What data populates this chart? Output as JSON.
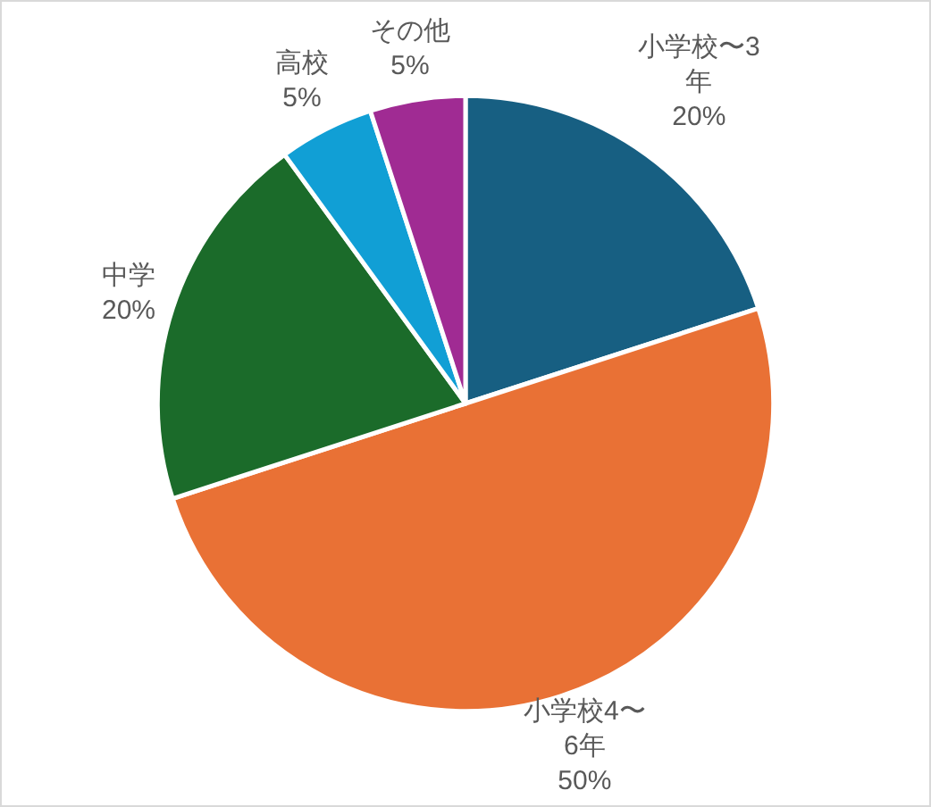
{
  "chart_data": {
    "type": "pie",
    "categories": [
      "小学校〜3年",
      "小学校4〜6年",
      "中学",
      "高校",
      "その他"
    ],
    "values": [
      20,
      50,
      20,
      5,
      5
    ],
    "colors": [
      "#175f82",
      "#e97135",
      "#1b6b2a",
      "#119fd5",
      "#a02b93"
    ],
    "value_labels": [
      "20%",
      "50%",
      "20%",
      "5%",
      "5%"
    ],
    "legend": false
  }
}
